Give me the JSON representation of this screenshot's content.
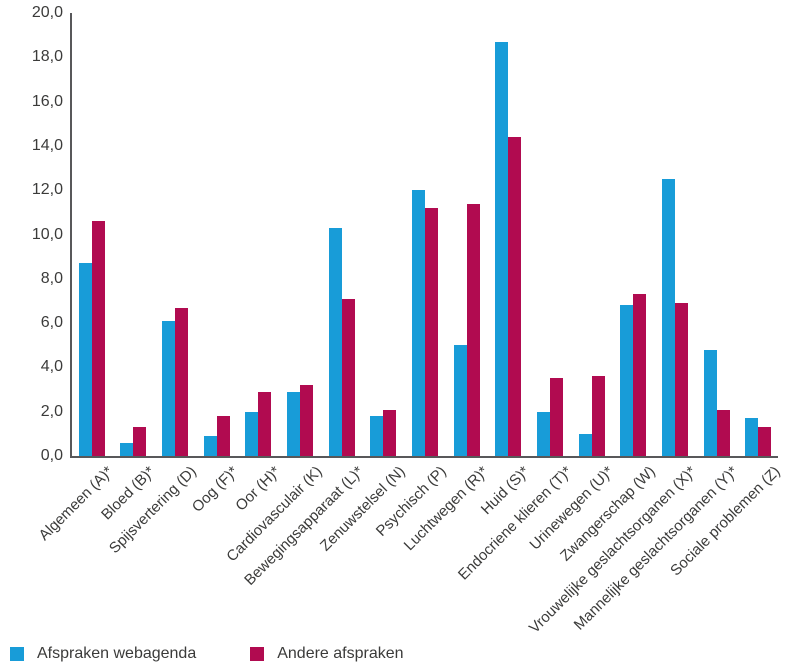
{
  "chart_data": {
    "type": "bar",
    "title": "",
    "xlabel": "",
    "ylabel": "",
    "ylim": [
      0,
      20
    ],
    "ytick_step": 2,
    "ytick_labels": [
      "0,0",
      "2,0",
      "4,0",
      "6,0",
      "8,0",
      "10,0",
      "12,0",
      "14,0",
      "16,0",
      "18,0",
      "20,0"
    ],
    "grid": false,
    "legend_position": "bottom-left",
    "categories": [
      "Algemeen (A)*",
      "Bloed (B)*",
      "Spijsvertering (D)",
      "Oog (F)*",
      "Oor (H)*",
      "Cardiovasculair (K)",
      "Bewegingsapparaat (L)*",
      "Zenuwstelsel (N)",
      "Psychisch (P)",
      "Luchtwegen (R)*",
      "Huid (S)*",
      "Endocriene klieren (T)*",
      "Urinewegen (U)*",
      "Zwangerschap (W)",
      "Vrouwelijke geslachtsorganen (X)*",
      "Mannelijke geslachtsorganen (Y)*",
      "Sociale problemen (Z)"
    ],
    "series": [
      {
        "name": "Afspraken webagenda",
        "color": "#189CD8",
        "values": [
          8.7,
          0.6,
          6.1,
          0.9,
          2.0,
          2.9,
          10.3,
          1.8,
          12.0,
          5.0,
          18.7,
          2.0,
          1.0,
          6.8,
          12.5,
          4.8,
          1.7
        ]
      },
      {
        "name": "Andere afspraken",
        "color": "#B10B50",
        "values": [
          10.6,
          1.3,
          6.7,
          1.8,
          2.9,
          3.2,
          7.1,
          2.1,
          11.2,
          11.4,
          14.4,
          3.5,
          3.6,
          7.3,
          6.9,
          2.1,
          1.3
        ]
      }
    ],
    "axis_color": "#58585A",
    "text_color": "#3B3B3A"
  }
}
